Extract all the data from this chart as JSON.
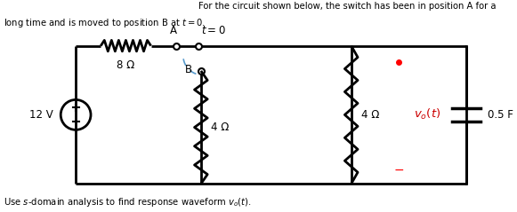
{
  "title_line1": "For the circuit shown below, the switch has been in position A for a",
  "title_line2": "long time and is moved to position B at $t = 0$.",
  "bottom_text": "Use $s$-domain analysis to find response waveform $v_o(t)$.",
  "fig_width": 5.81,
  "fig_height": 2.39,
  "bg_color": "#ffffff",
  "circuit_color": "#000000",
  "switch_arc_color": "#5599cc",
  "label_color_red": "#cc0000",
  "resistor_8": "8 Ω",
  "resistor_4a": "4 Ω",
  "resistor_4b": "4 Ω",
  "capacitor": "0.5 F",
  "voltage_src": "12 V",
  "switch_label_A": "A",
  "switch_label_B": "B",
  "switch_label_t": "$t = 0$",
  "xlim": [
    0,
    10
  ],
  "ylim": [
    0,
    4.2
  ]
}
